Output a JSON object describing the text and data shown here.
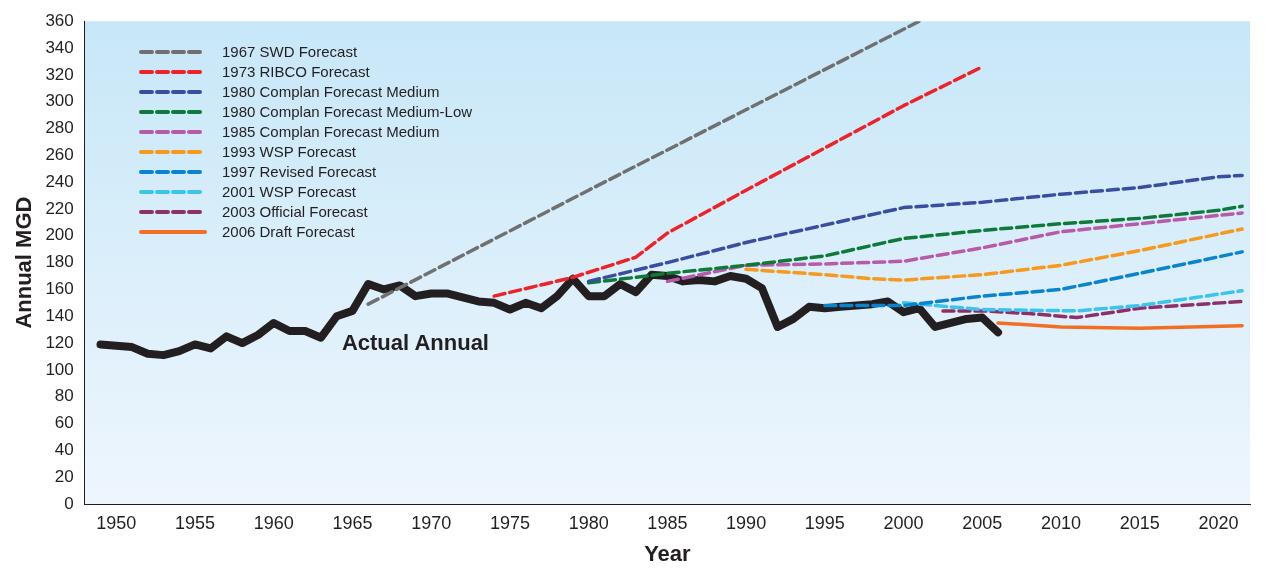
{
  "chart_data": {
    "type": "line",
    "xlabel": "Year",
    "ylabel": "Annual MGD",
    "xlim": [
      1948,
      2022
    ],
    "xticks": [
      1950,
      1955,
      1960,
      1965,
      1970,
      1975,
      1980,
      1985,
      1990,
      1995,
      2000,
      2005,
      2010,
      2015,
      2020
    ],
    "ylim": [
      0,
      360
    ],
    "yticks": [
      0,
      20,
      40,
      60,
      80,
      100,
      120,
      140,
      160,
      180,
      200,
      220,
      240,
      260,
      280,
      300,
      320,
      340,
      360
    ],
    "legend": "top left",
    "grid": false,
    "series": [
      {
        "name": "1967 SWD Forecast",
        "color": "#707070",
        "line_style": "dashed",
        "x": [
          1966,
          1980,
          2001
        ],
        "values": [
          149,
          234,
          360
        ]
      },
      {
        "name": "1973 RIBCO Forecast",
        "color": "#ee2229",
        "line_style": "dashed",
        "x": [
          1974,
          1979,
          1983,
          1985,
          1990,
          2000,
          2005
        ],
        "values": [
          155,
          169,
          184,
          202,
          234,
          297,
          326
        ]
      },
      {
        "name": "1980 Complan Forecast Medium",
        "color": "#3a4ea1",
        "line_style": "dashed",
        "x": [
          1980,
          1985,
          1990,
          2000,
          2005,
          2010,
          2015,
          2020,
          2021.5
        ],
        "values": [
          166,
          180,
          195,
          221,
          225,
          231,
          236,
          244,
          245
        ]
      },
      {
        "name": "1980 Complan Forecast Medium-Low",
        "color": "#0d7a3a",
        "line_style": "dashed",
        "x": [
          1980,
          1983,
          1985,
          1990,
          1995,
          2000,
          2005,
          2010,
          2015,
          2020,
          2021.5
        ],
        "values": [
          165,
          169,
          172,
          178,
          185,
          198,
          204,
          209,
          213,
          219,
          222
        ]
      },
      {
        "name": "1985 Complan Forecast Medium",
        "color": "#b85aaa",
        "line_style": "dashed",
        "x": [
          1985,
          1990,
          1995,
          2000,
          2005,
          2010,
          2015,
          2021.5
        ],
        "values": [
          166,
          178,
          179,
          181,
          191,
          203,
          209,
          217
        ]
      },
      {
        "name": "1993 WSP Forecast",
        "color": "#f7991c",
        "line_style": "dashed",
        "x": [
          1990,
          1995,
          1998,
          2000,
          2005,
          2010,
          2015,
          2021.5
        ],
        "values": [
          175,
          171,
          168,
          167,
          171,
          178,
          189,
          205
        ]
      },
      {
        "name": "1997 Revised Forecast",
        "color": "#0a84cf",
        "line_style": "dashed",
        "x": [
          1995,
          2000,
          2005,
          2010,
          2015,
          2021.5
        ],
        "values": [
          148,
          148,
          155,
          160,
          172,
          188
        ]
      },
      {
        "name": "2001 WSP Forecast",
        "color": "#3cc3f0",
        "line_style": "dashed",
        "x": [
          2000,
          2005,
          2011,
          2015,
          2021.5
        ],
        "values": [
          150,
          145,
          144,
          148,
          159
        ]
      },
      {
        "name": "2003 Official Forecast",
        "color": "#8e3068",
        "line_style": "dashed",
        "x": [
          2002.5,
          2005,
          2008,
          2011,
          2015,
          2021.5
        ],
        "values": [
          144,
          144,
          142,
          139,
          146,
          151
        ]
      },
      {
        "name": "2006 Draft Forecast",
        "color": "#f26f21",
        "line_style": "solid",
        "x": [
          2006,
          2010,
          2015,
          2021.5
        ],
        "values": [
          135,
          132,
          131,
          133
        ]
      },
      {
        "name": "Actual Annual",
        "color": "#231f20",
        "line_style": "solid",
        "x": [
          1949,
          1950,
          1951,
          1952,
          1953,
          1954,
          1955,
          1956,
          1957,
          1958,
          1959,
          1960,
          1961,
          1962,
          1963,
          1964,
          1965,
          1966,
          1967,
          1968,
          1969,
          1970,
          1971,
          1972,
          1973,
          1974,
          1975,
          1976,
          1977,
          1978,
          1979,
          1980,
          1981,
          1982,
          1983,
          1984,
          1985,
          1986,
          1987,
          1988,
          1989,
          1990,
          1991,
          1992,
          1993,
          1994,
          1995,
          1996,
          1997,
          1998,
          1999,
          2000,
          2001,
          2002,
          2003,
          2004,
          2005,
          2006
        ],
        "values": [
          119,
          118,
          117,
          112,
          111,
          114,
          119,
          116,
          125,
          120,
          126,
          135,
          129,
          129,
          124,
          140,
          144,
          164,
          160,
          163,
          155,
          157,
          157,
          154,
          151,
          150,
          145,
          150,
          146,
          155,
          168,
          155,
          155,
          164,
          158,
          171,
          170,
          166,
          167,
          166,
          170,
          168,
          161,
          132,
          138,
          147,
          146,
          147,
          148,
          149,
          151,
          143,
          146,
          132,
          135,
          138,
          139,
          128
        ]
      }
    ]
  }
}
